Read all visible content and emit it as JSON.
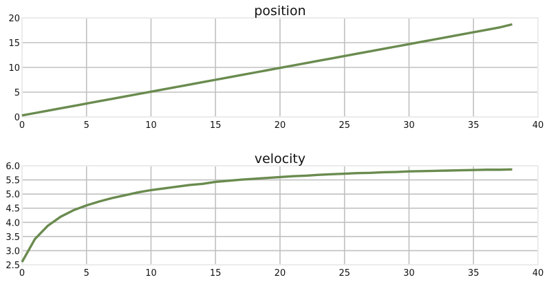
{
  "chart_data": [
    {
      "type": "line",
      "title": "position",
      "xlabel": "",
      "ylabel": "",
      "xlim": [
        0,
        40
      ],
      "ylim": [
        0,
        20
      ],
      "xticks": [
        "0",
        "5",
        "10",
        "15",
        "20",
        "25",
        "30",
        "35",
        "40"
      ],
      "yticks": [
        "0",
        "5",
        "10",
        "15",
        "20"
      ],
      "grid": true,
      "color": "#6a8b4f",
      "series": [
        {
          "x": [
            0,
            1,
            2,
            3,
            4,
            5,
            6,
            7,
            8,
            9,
            10,
            11,
            12,
            13,
            14,
            15,
            16,
            17,
            18,
            19,
            20,
            21,
            22,
            23,
            24,
            25,
            26,
            27,
            28,
            29,
            30,
            31,
            32,
            33,
            34,
            35,
            36,
            37,
            38
          ],
          "y": [
            0.3,
            0.78,
            1.26,
            1.74,
            2.22,
            2.7,
            3.18,
            3.66,
            4.14,
            4.62,
            5.1,
            5.58,
            6.06,
            6.54,
            7.02,
            7.5,
            7.98,
            8.46,
            8.94,
            9.42,
            9.9,
            10.38,
            10.86,
            11.34,
            11.82,
            12.3,
            12.78,
            13.26,
            13.74,
            14.22,
            14.7,
            15.18,
            15.66,
            16.14,
            16.62,
            17.1,
            17.58,
            18.06,
            18.7
          ]
        }
      ]
    },
    {
      "type": "line",
      "title": "velocity",
      "xlabel": "",
      "ylabel": "",
      "xlim": [
        0,
        40
      ],
      "ylim": [
        2.5,
        6.0
      ],
      "xticks": [
        "0",
        "5",
        "10",
        "15",
        "20",
        "25",
        "30",
        "35",
        "40"
      ],
      "yticks": [
        "2.5",
        "3.0",
        "3.5",
        "4.0",
        "4.5",
        "5.0",
        "5.5",
        "6.0"
      ],
      "grid": true,
      "color": "#6a8b4f",
      "series": [
        {
          "x": [
            0,
            1,
            2,
            3,
            4,
            5,
            6,
            7,
            8,
            9,
            10,
            11,
            12,
            13,
            14,
            15,
            16,
            17,
            18,
            19,
            20,
            21,
            22,
            23,
            24,
            25,
            26,
            27,
            28,
            29,
            30,
            31,
            32,
            33,
            34,
            35,
            36,
            37,
            38
          ],
          "y": [
            2.6,
            3.41,
            3.88,
            4.2,
            4.43,
            4.6,
            4.74,
            4.86,
            4.96,
            5.06,
            5.14,
            5.2,
            5.26,
            5.32,
            5.36,
            5.43,
            5.47,
            5.51,
            5.54,
            5.57,
            5.6,
            5.63,
            5.65,
            5.68,
            5.7,
            5.72,
            5.74,
            5.75,
            5.77,
            5.78,
            5.8,
            5.81,
            5.82,
            5.83,
            5.84,
            5.85,
            5.86,
            5.86,
            5.87
          ]
        }
      ]
    }
  ]
}
